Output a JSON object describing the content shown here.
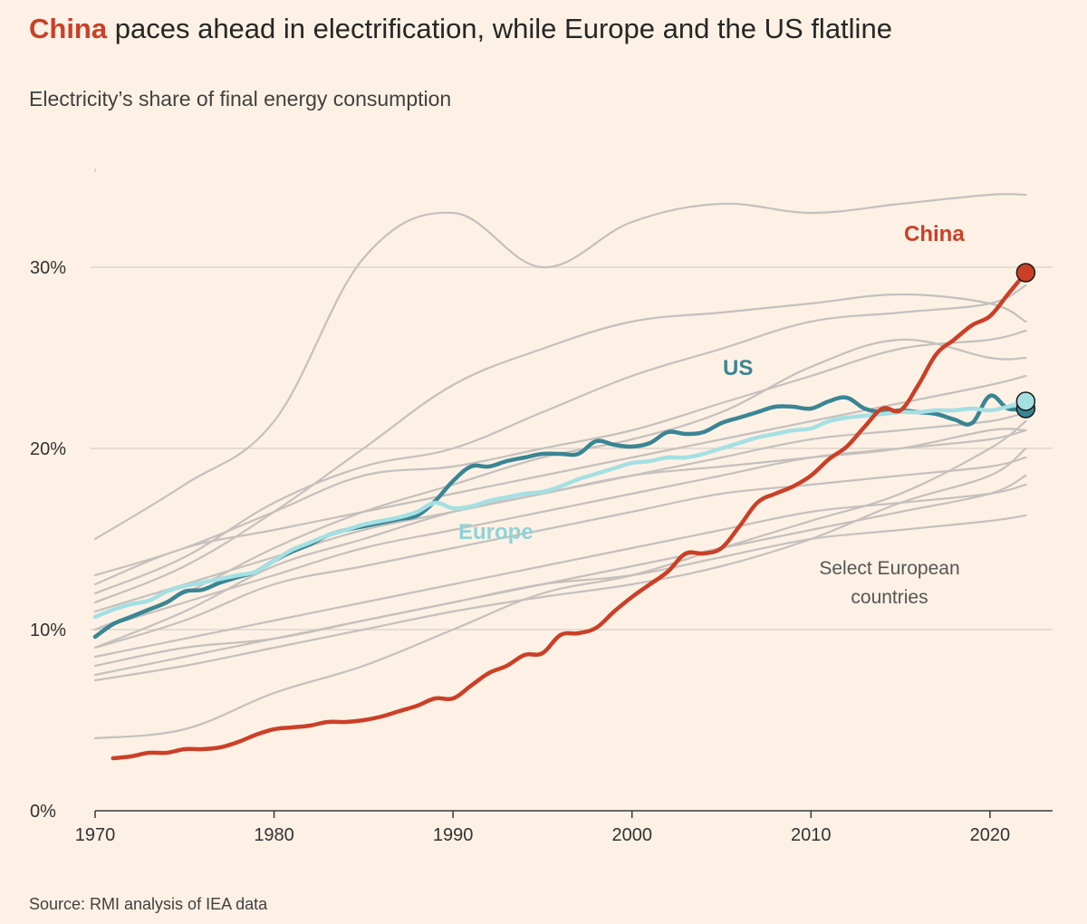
{
  "title_highlight": "China",
  "title_rest": " paces ahead in electrification, while Europe and the US flatline",
  "subtitle": "Electricity’s share of final energy consumption",
  "source": "Source: RMI analysis of IEA data",
  "colors": {
    "background": "#fdf1e5",
    "china": "#cc3f27",
    "us": "#3a8594",
    "europe": "#a4e0e3",
    "countries": "#c5c0bd",
    "gridline": "#d8d0c8"
  },
  "chart_data": {
    "type": "line",
    "title": "China paces ahead in electrification, while Europe and the US flatline",
    "subtitle": "Electricity’s share of final energy consumption",
    "xlabel": "",
    "ylabel": "",
    "xlim": [
      1970,
      2023.5
    ],
    "ylim": [
      0,
      35
    ],
    "x_ticks": [
      1970,
      1980,
      1990,
      2000,
      2010,
      2020
    ],
    "x_tick_labels": [
      "1970",
      "1980",
      "1990",
      "2000",
      "2010",
      "2020"
    ],
    "y_ticks": [
      0,
      10,
      20,
      30
    ],
    "y_tick_labels": [
      "0%",
      "10%",
      "20%",
      "30%"
    ],
    "grid": "horizontal",
    "series": [
      {
        "name": "China",
        "label": "China",
        "role": "highlight",
        "color": "#cc3f27",
        "x": [
          1971,
          1972,
          1973,
          1974,
          1975,
          1976,
          1977,
          1978,
          1979,
          1980,
          1981,
          1982,
          1983,
          1984,
          1985,
          1986,
          1987,
          1988,
          1989,
          1990,
          1991,
          1992,
          1993,
          1994,
          1995,
          1996,
          1997,
          1998,
          1999,
          2000,
          2001,
          2002,
          2003,
          2004,
          2005,
          2006,
          2007,
          2008,
          2009,
          2010,
          2011,
          2012,
          2013,
          2014,
          2015,
          2016,
          2017,
          2018,
          2019,
          2020,
          2021,
          2022
        ],
        "values": [
          2.9,
          3.0,
          3.2,
          3.2,
          3.4,
          3.4,
          3.5,
          3.8,
          4.2,
          4.5,
          4.6,
          4.7,
          4.9,
          4.9,
          5.0,
          5.2,
          5.5,
          5.8,
          6.2,
          6.2,
          6.9,
          7.6,
          8.0,
          8.6,
          8.7,
          9.7,
          9.8,
          10.1,
          11.0,
          11.8,
          12.5,
          13.2,
          14.2,
          14.2,
          14.5,
          15.7,
          17.0,
          17.5,
          17.9,
          18.5,
          19.4,
          20.1,
          21.2,
          22.2,
          22.1,
          23.5,
          25.2,
          26.0,
          26.8,
          27.3,
          28.5,
          29.7
        ]
      },
      {
        "name": "US",
        "label": "US",
        "role": "highlight",
        "color": "#3a8594",
        "x": [
          1970,
          1971,
          1972,
          1973,
          1974,
          1975,
          1976,
          1977,
          1978,
          1979,
          1980,
          1981,
          1982,
          1983,
          1984,
          1985,
          1986,
          1987,
          1988,
          1989,
          1990,
          1991,
          1992,
          1993,
          1994,
          1995,
          1996,
          1997,
          1998,
          1999,
          2000,
          2001,
          2002,
          2003,
          2004,
          2005,
          2006,
          2007,
          2008,
          2009,
          2010,
          2011,
          2012,
          2013,
          2014,
          2015,
          2016,
          2017,
          2018,
          2019,
          2020,
          2021,
          2022
        ],
        "values": [
          9.6,
          10.3,
          10.7,
          11.1,
          11.5,
          12.1,
          12.2,
          12.6,
          12.9,
          13.2,
          13.8,
          14.3,
          14.7,
          15.2,
          15.5,
          15.7,
          15.9,
          16.1,
          16.3,
          17.1,
          18.2,
          19.0,
          19.0,
          19.3,
          19.5,
          19.7,
          19.7,
          19.7,
          20.4,
          20.2,
          20.1,
          20.3,
          20.9,
          20.8,
          20.9,
          21.4,
          21.7,
          22.0,
          22.3,
          22.3,
          22.2,
          22.6,
          22.8,
          22.2,
          22.0,
          22.1,
          22.0,
          21.9,
          21.6,
          21.4,
          22.9,
          22.2,
          22.2
        ]
      },
      {
        "name": "Europe",
        "label": "Europe",
        "role": "highlight",
        "color": "#a4e0e3",
        "x": [
          1970,
          1971,
          1972,
          1973,
          1974,
          1975,
          1976,
          1977,
          1978,
          1979,
          1980,
          1981,
          1982,
          1983,
          1984,
          1985,
          1986,
          1987,
          1988,
          1989,
          1990,
          1991,
          1992,
          1993,
          1994,
          1995,
          1996,
          1997,
          1998,
          1999,
          2000,
          2001,
          2002,
          2003,
          2004,
          2005,
          2006,
          2007,
          2008,
          2009,
          2010,
          2011,
          2012,
          2013,
          2014,
          2015,
          2016,
          2017,
          2018,
          2019,
          2020,
          2021,
          2022
        ],
        "values": [
          10.7,
          11.1,
          11.4,
          11.6,
          12.1,
          12.4,
          12.6,
          12.8,
          13.0,
          13.2,
          13.8,
          14.4,
          14.8,
          15.2,
          15.5,
          15.8,
          16.0,
          16.2,
          16.5,
          17.0,
          16.7,
          16.8,
          17.1,
          17.3,
          17.5,
          17.6,
          17.9,
          18.3,
          18.6,
          18.9,
          19.2,
          19.3,
          19.5,
          19.5,
          19.7,
          20.0,
          20.3,
          20.6,
          20.8,
          21.0,
          21.1,
          21.5,
          21.7,
          21.8,
          21.9,
          22.0,
          22.0,
          22.1,
          22.1,
          22.2,
          22.1,
          22.3,
          22.6
        ]
      },
      {
        "name": "European country 1",
        "role": "context",
        "x": [
          1970,
          1975,
          1980,
          1985,
          1990,
          1995,
          2000,
          2005,
          2010,
          2015,
          2020,
          2022
        ],
        "values": [
          13.0,
          14.5,
          16.5,
          18.5,
          19.0,
          20.0,
          21.0,
          22.5,
          24.0,
          25.5,
          26.0,
          26.5
        ]
      },
      {
        "name": "European country 2",
        "role": "context",
        "x": [
          1970,
          1975,
          1980,
          1985,
          1990,
          1995,
          2000,
          2005,
          2010,
          2015,
          2020,
          2022
        ],
        "values": [
          12.0,
          14.0,
          17.0,
          19.0,
          20.0,
          22.0,
          24.0,
          25.5,
          27.0,
          27.5,
          28.0,
          29.0
        ]
      },
      {
        "name": "European country 3",
        "role": "context",
        "x": [
          1970,
          1975,
          1980,
          1985,
          1990,
          1995,
          2000,
          2005,
          2010,
          2015,
          2020,
          2022
        ],
        "values": [
          11.0,
          12.5,
          14.0,
          15.5,
          16.5,
          17.5,
          18.5,
          19.5,
          20.5,
          21.0,
          21.5,
          22.0
        ]
      },
      {
        "name": "European country 4",
        "role": "context",
        "x": [
          1970,
          1975,
          1980,
          1985,
          1990,
          1995,
          2000,
          2005,
          2010,
          2015,
          2020,
          2022
        ],
        "values": [
          10.0,
          11.5,
          13.0,
          14.5,
          15.5,
          16.5,
          17.5,
          18.5,
          19.5,
          20.0,
          20.5,
          21.0
        ]
      },
      {
        "name": "European country 5",
        "role": "context",
        "x": [
          1970,
          1975,
          1980,
          1985,
          1990,
          1995,
          2000,
          2005,
          2010,
          2015,
          2020,
          2022
        ],
        "values": [
          9.0,
          10.5,
          12.5,
          13.5,
          14.5,
          15.5,
          16.5,
          17.5,
          18.0,
          18.5,
          19.0,
          19.5
        ]
      },
      {
        "name": "European country 6",
        "role": "context",
        "x": [
          1970,
          1975,
          1980,
          1985,
          1990,
          1995,
          2000,
          2005,
          2010,
          2015,
          2020,
          2022
        ],
        "values": [
          8.5,
          9.5,
          10.5,
          11.5,
          12.5,
          13.5,
          14.5,
          15.5,
          16.5,
          17.0,
          17.5,
          18.0
        ]
      },
      {
        "name": "European country 7",
        "role": "context",
        "x": [
          1970,
          1975,
          1980,
          1985,
          1990,
          1995,
          2000,
          2005,
          2010,
          2015,
          2020,
          2022
        ],
        "values": [
          8.0,
          9.0,
          9.5,
          10.5,
          11.5,
          12.5,
          13.0,
          14.0,
          15.0,
          15.5,
          16.0,
          16.3
        ]
      },
      {
        "name": "European country 8",
        "role": "context",
        "x": [
          1970,
          1975,
          1980,
          1985,
          1990,
          1995,
          2000,
          2005,
          2010,
          2015,
          2020,
          2022
        ],
        "values": [
          7.5,
          8.5,
          9.5,
          10.5,
          11.5,
          12.5,
          13.5,
          14.5,
          15.5,
          16.5,
          17.5,
          18.5
        ]
      },
      {
        "name": "European country 9",
        "role": "context",
        "x": [
          1970,
          1975,
          1980,
          1985,
          1990,
          1995,
          2000,
          2005,
          2010,
          2015,
          2020,
          2022
        ],
        "values": [
          7.2,
          8.0,
          9.0,
          10.0,
          11.0,
          11.8,
          12.5,
          13.5,
          15.0,
          17.0,
          18.5,
          20.0
        ]
      },
      {
        "name": "European country 10",
        "role": "context",
        "x": [
          1970,
          1975,
          1980,
          1985,
          1990,
          1995,
          2000,
          2005,
          2010,
          2015,
          2020,
          2022
        ],
        "values": [
          12.5,
          14.5,
          15.5,
          16.5,
          17.5,
          18.5,
          19.5,
          20.5,
          21.5,
          22.5,
          23.5,
          24.0
        ]
      },
      {
        "name": "European country 11",
        "role": "context",
        "x": [
          1970,
          1975,
          1980,
          1985,
          1990,
          1995,
          2000,
          2005,
          2010,
          2015,
          2020,
          2022
        ],
        "values": [
          4.0,
          4.5,
          6.5,
          8.0,
          10.0,
          12.0,
          13.0,
          14.5,
          16.0,
          17.5,
          20.0,
          21.5
        ]
      },
      {
        "name": "European country 12",
        "role": "context",
        "x": [
          1970,
          1975,
          1980,
          1985,
          1990,
          1995,
          2000,
          2005,
          2010,
          2015,
          2020,
          2022
        ],
        "values": [
          15.0,
          18.0,
          21.5,
          30.5,
          33.0,
          30.0,
          32.5,
          33.5,
          33.0,
          33.5,
          34.0,
          34.0
        ]
      },
      {
        "name": "European country 13",
        "role": "context",
        "x": [
          1970,
          1975,
          1980,
          1985,
          1990,
          1995,
          2000,
          2005,
          2010,
          2015,
          2020,
          2022
        ],
        "values": [
          11.5,
          13.5,
          16.5,
          20.0,
          23.5,
          25.5,
          27.0,
          27.5,
          28.0,
          28.5,
          28.0,
          27.0
        ]
      },
      {
        "name": "European country 14",
        "role": "context",
        "x": [
          1970,
          1975,
          1980,
          1985,
          1990,
          1995,
          2000,
          2005,
          2010,
          2015,
          2020,
          2022
        ],
        "values": [
          10.0,
          12.0,
          14.5,
          16.5,
          18.0,
          19.5,
          20.5,
          22.0,
          24.5,
          26.0,
          25.0,
          25.0
        ]
      },
      {
        "name": "European country 15",
        "role": "context",
        "x": [
          1970,
          1975,
          1980,
          1985,
          1990,
          1995,
          2000,
          2005,
          2010,
          2015,
          2020,
          2022
        ],
        "values": [
          9.0,
          11.0,
          13.5,
          15.0,
          16.5,
          17.5,
          18.5,
          19.0,
          19.5,
          20.0,
          21.0,
          21.0
        ]
      }
    ],
    "markers": [
      {
        "series": "China",
        "x": 2022,
        "y": 29.7
      },
      {
        "series": "US",
        "x": 2022,
        "y": 22.2
      },
      {
        "series": "Europe",
        "x": 2022,
        "y": 22.6
      }
    ],
    "annotations": [
      {
        "text_lines": [
          "Select European",
          "countries"
        ],
        "near_x": 2014,
        "near_y": 12.5
      }
    ]
  }
}
